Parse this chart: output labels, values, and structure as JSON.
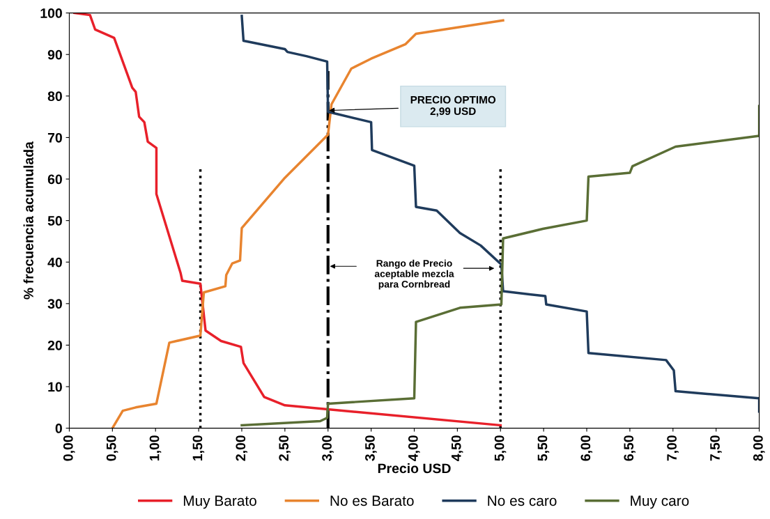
{
  "chart_data": {
    "type": "line",
    "xlabel": "Precio USD",
    "ylabel": "% frecuencia acumulada",
    "xlim": [
      0,
      8
    ],
    "ylim": [
      0,
      100
    ],
    "xticks": [
      {
        "value": 0,
        "label": "0,00"
      },
      {
        "value": 0.5,
        "label": "0,50"
      },
      {
        "value": 1,
        "label": "1,00"
      },
      {
        "value": 1.5,
        "label": "1,50"
      },
      {
        "value": 2,
        "label": "2,00"
      },
      {
        "value": 2.5,
        "label": "2,50"
      },
      {
        "value": 3,
        "label": "3,00"
      },
      {
        "value": 3.5,
        "label": "3,50"
      },
      {
        "value": 4,
        "label": "4,00"
      },
      {
        "value": 4.5,
        "label": "4,50"
      },
      {
        "value": 5,
        "label": "5,00"
      },
      {
        "value": 5.5,
        "label": "5,50"
      },
      {
        "value": 6,
        "label": "6,00"
      },
      {
        "value": 6.5,
        "label": "6,50"
      },
      {
        "value": 7,
        "label": "7,00"
      },
      {
        "value": 7.5,
        "label": "7,50"
      },
      {
        "value": 8,
        "label": "8,00"
      }
    ],
    "yticks": [
      0,
      10,
      20,
      30,
      40,
      50,
      60,
      70,
      80,
      90,
      100
    ],
    "grid": false,
    "legend": "bottom",
    "marker": "none",
    "line_style": "solid",
    "series": [
      {
        "name": "Muy Barato",
        "color": "#e8202a",
        "x": [
          0.06,
          0.24,
          0.3,
          0.52,
          0.73,
          0.77,
          0.81,
          0.87,
          0.91,
          1.01,
          1.01,
          1.29,
          1.31,
          1.52,
          1.58,
          1.76,
          1.99,
          2.02,
          2.26,
          2.5,
          5.0
        ],
        "values": [
          100,
          99.5,
          96,
          94,
          82,
          81,
          75,
          73.7,
          69,
          67.5,
          56.4,
          37.4,
          35.5,
          34.8,
          23.5,
          21,
          19.6,
          15.7,
          7.5,
          5.5,
          0.7
        ]
      },
      {
        "name": "No es Barato",
        "color": "#e8842f",
        "x": [
          0.5,
          0.62,
          0.77,
          1.01,
          1.16,
          1.52,
          1.56,
          1.81,
          1.82,
          1.89,
          1.98,
          2.0,
          2.5,
          3.0,
          3.04,
          3.27,
          3.5,
          3.9,
          4.02,
          5.03
        ],
        "values": [
          0,
          4.2,
          5,
          5.9,
          20.6,
          22.3,
          32.7,
          34.2,
          36.9,
          39.7,
          40.4,
          48.2,
          60.3,
          70.7,
          78,
          86.6,
          89,
          92.5,
          95,
          98.2
        ]
      },
      {
        "name": "No es caro",
        "color": "#1f3b5c",
        "x": [
          2.0,
          2.02,
          2.5,
          2.53,
          2.75,
          2.99,
          3.0,
          3.5,
          3.51,
          4.0,
          4.02,
          4.26,
          4.53,
          4.77,
          5.01,
          5.03,
          5.52,
          5.53,
          6.0,
          6.02,
          6.92,
          7.01,
          7.03,
          8.0,
          8.0
        ],
        "values": [
          99.3,
          93.3,
          91.3,
          90.6,
          89.6,
          88.3,
          76.2,
          73.7,
          67,
          63.2,
          53.3,
          52.4,
          47,
          44,
          39.4,
          33,
          31.8,
          29.8,
          28.1,
          18.1,
          16.4,
          13.9,
          8.9,
          7.2,
          4
        ]
      },
      {
        "name": "Muy caro",
        "color": "#5a6e35",
        "x": [
          2.0,
          2.91,
          2.99,
          3.0,
          4.0,
          4.02,
          4.53,
          5.01,
          5.03,
          5.49,
          6.0,
          6.02,
          6.5,
          6.53,
          7.03,
          8.0,
          8.0
        ],
        "values": [
          0.7,
          1.7,
          2.5,
          5.9,
          7.2,
          25.6,
          29,
          29.8,
          45.7,
          48,
          50,
          60.6,
          61.5,
          63.1,
          67.8,
          70.4,
          77.6
        ]
      }
    ],
    "ref_lines": [
      {
        "axis": "x",
        "value": 1.52,
        "color": "#000000",
        "line_style": "dotted"
      },
      {
        "axis": "x",
        "value": 3.0,
        "color": "#000000",
        "line_style": "dashdot"
      },
      {
        "axis": "x",
        "value": 5.0,
        "color": "#000000",
        "line_style": "dotted"
      }
    ],
    "annotations": [
      {
        "text": "PRECIO OPTIMO\n2,99 USD",
        "x": 2.99,
        "y": 76.5
      },
      "Rango de Precio\naceptable mezcla\npara Cornbread"
    ]
  }
}
